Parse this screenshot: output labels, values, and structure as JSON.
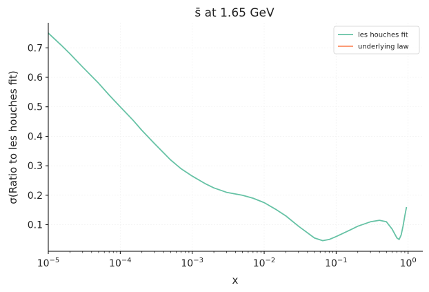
{
  "chart_data": {
    "type": "line",
    "title": "s̄ at 1.65 GeV",
    "xlabel": "x",
    "ylabel": "σ(Ratio to les houches fit)",
    "xscale": "log",
    "xlim": [
      1e-05,
      1.6
    ],
    "ylim": [
      0.01,
      0.785
    ],
    "grid": true,
    "legend_position": "top-right",
    "x_ticks": [
      1e-05,
      0.0001,
      0.001,
      0.01,
      0.1,
      1
    ],
    "x_tick_labels": [
      {
        "base": "10",
        "exp": "−5"
      },
      {
        "base": "10",
        "exp": "−4"
      },
      {
        "base": "10",
        "exp": "−3"
      },
      {
        "base": "10",
        "exp": "−2"
      },
      {
        "base": "10",
        "exp": "−1"
      },
      {
        "base": "10",
        "exp": "0"
      }
    ],
    "y_ticks": [
      0.1,
      0.2,
      0.3,
      0.4,
      0.5,
      0.6,
      0.7
    ],
    "y_tick_labels": [
      "0.1",
      "0.2",
      "0.3",
      "0.4",
      "0.5",
      "0.6",
      "0.7"
    ],
    "series": [
      {
        "name": "les houches fit",
        "color": "#66c2a5",
        "x": [
          1e-05,
          1.5e-05,
          2e-05,
          3e-05,
          5e-05,
          7e-05,
          0.0001,
          0.00015,
          0.0002,
          0.0003,
          0.0005,
          0.0007,
          0.001,
          0.0015,
          0.002,
          0.003,
          0.005,
          0.007,
          0.01,
          0.015,
          0.02,
          0.03,
          0.05,
          0.065,
          0.08,
          0.1,
          0.15,
          0.2,
          0.3,
          0.4,
          0.5,
          0.6,
          0.7,
          0.75,
          0.8,
          0.85,
          0.9,
          0.95
        ],
        "y": [
          0.75,
          0.71,
          0.68,
          0.635,
          0.58,
          0.54,
          0.5,
          0.455,
          0.42,
          0.375,
          0.32,
          0.29,
          0.265,
          0.24,
          0.225,
          0.21,
          0.2,
          0.19,
          0.175,
          0.15,
          0.13,
          0.095,
          0.055,
          0.046,
          0.05,
          0.06,
          0.08,
          0.095,
          0.11,
          0.115,
          0.11,
          0.085,
          0.055,
          0.05,
          0.065,
          0.095,
          0.13,
          0.16
        ]
      },
      {
        "name": "underlying law",
        "color": "#fc8d62",
        "x": [],
        "y": []
      }
    ]
  }
}
